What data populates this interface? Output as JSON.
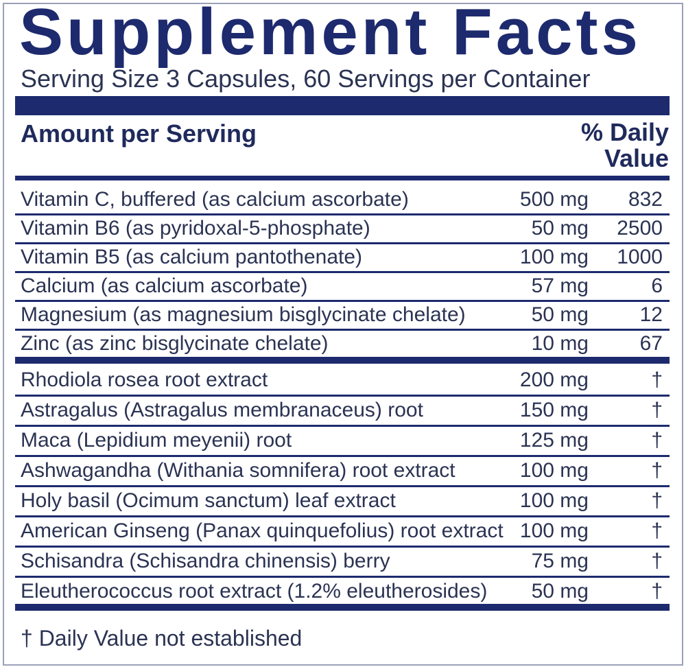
{
  "title": "Supplement Facts",
  "serving": "Serving Size 3 Capsules, 60 Servings per Container",
  "header": {
    "amount": "Amount per Serving",
    "daily_value": "% Daily Value"
  },
  "table": {
    "vitamins_minerals": [
      [
        "Vitamin C, buffered (as calcium ascorbate)",
        "500 mg",
        "832"
      ],
      [
        "Vitamin B6 (as pyridoxal-5-phosphate)",
        "50 mg",
        "2500"
      ],
      [
        "Vitamin B5 (as calcium pantothenate)",
        "100 mg",
        "1000"
      ],
      [
        "Calcium (as calcium ascorbate)",
        "57 mg",
        "6"
      ],
      [
        "Magnesium (as magnesium bisglycinate chelate)",
        "50 mg",
        "12"
      ],
      [
        "Zinc (as zinc bisglycinate chelate)",
        "10 mg",
        "67"
      ]
    ],
    "botanicals": [
      [
        "Rhodiola rosea root extract",
        "200 mg",
        "†"
      ],
      [
        "Astragalus (Astragalus membranaceus) root",
        "150 mg",
        "†"
      ],
      [
        "Maca (Lepidium meyenii) root",
        "125 mg",
        "†"
      ],
      [
        "Ashwagandha (Withania somnifera) root extract",
        "100 mg",
        "†"
      ],
      [
        "Holy basil (Ocimum sanctum) leaf extract",
        "100 mg",
        "†"
      ],
      [
        "American Ginseng (Panax quinquefolius) root extract",
        "100 mg",
        "†"
      ],
      [
        "Schisandra (Schisandra chinensis) berry",
        "75 mg",
        "†"
      ],
      [
        "Eleutherococcus root extract (1.2% eleutherosides)",
        "50 mg",
        "†"
      ]
    ]
  },
  "footnote": "† Daily Value not established"
}
